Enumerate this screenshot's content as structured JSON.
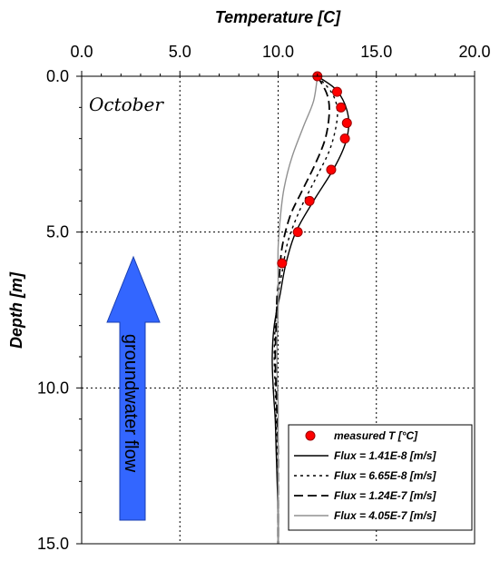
{
  "chart_data": {
    "type": "line",
    "xlabel": "Temperature [C]",
    "ylabel": "Depth [m]",
    "xlim": [
      0,
      20
    ],
    "ylim": [
      0,
      15
    ],
    "y_inverted": true,
    "x_axis_position": "top",
    "grid": "dotted major gridlines",
    "x_ticks": [
      "0.0",
      "5.0",
      "10.0",
      "15.0",
      "20.0"
    ],
    "y_ticks": [
      "0.0",
      "5.0",
      "10.0",
      "15.0"
    ],
    "legend_position": "bottom-right",
    "annotations": {
      "month": "October",
      "arrow": "groundwater flow",
      "arrow_color": "#3366ff"
    },
    "series": [
      {
        "name": "measured T [°C]",
        "kind": "markers",
        "color": "#ff0000",
        "points": [
          [
            12.0,
            0.0
          ],
          [
            13.0,
            0.5
          ],
          [
            13.2,
            1.0
          ],
          [
            13.5,
            1.5
          ],
          [
            13.4,
            2.0
          ],
          [
            12.7,
            3.0
          ],
          [
            11.6,
            4.0
          ],
          [
            11.0,
            5.0
          ],
          [
            10.2,
            6.0
          ]
        ]
      },
      {
        "name": "Flux = 1.41E-8 [m/s]",
        "kind": "line",
        "dash": "solid",
        "color": "#000000",
        "points": [
          [
            12.0,
            0.0
          ],
          [
            12.9,
            0.4
          ],
          [
            13.4,
            0.9
          ],
          [
            13.6,
            1.5
          ],
          [
            13.4,
            2.2
          ],
          [
            12.8,
            3.0
          ],
          [
            11.8,
            4.0
          ],
          [
            10.9,
            5.0
          ],
          [
            10.4,
            6.0
          ],
          [
            10.1,
            7.0
          ],
          [
            9.8,
            8.0
          ],
          [
            9.7,
            9.0
          ],
          [
            9.75,
            10.0
          ],
          [
            9.85,
            11.0
          ],
          [
            9.9,
            12.0
          ],
          [
            9.95,
            13.0
          ],
          [
            10.0,
            14.0
          ],
          [
            10.0,
            15.0
          ]
        ]
      },
      {
        "name": "Flux = 6.65E-8 [m/s]",
        "kind": "line",
        "dash": "dotted",
        "color": "#000000",
        "points": [
          [
            12.0,
            0.0
          ],
          [
            12.7,
            0.5
          ],
          [
            13.0,
            1.0
          ],
          [
            12.95,
            1.6
          ],
          [
            12.6,
            2.4
          ],
          [
            11.9,
            3.3
          ],
          [
            11.1,
            4.3
          ],
          [
            10.5,
            5.3
          ],
          [
            10.2,
            6.3
          ],
          [
            10.0,
            7.0
          ],
          [
            9.85,
            8.0
          ],
          [
            9.8,
            9.0
          ],
          [
            9.85,
            10.0
          ],
          [
            9.9,
            11.0
          ],
          [
            9.95,
            12.0
          ],
          [
            10.0,
            13.0
          ],
          [
            10.0,
            14.0
          ],
          [
            10.0,
            15.0
          ]
        ]
      },
      {
        "name": "Flux = 1.24E-7 [m/s]",
        "kind": "line",
        "dash": "dashed",
        "color": "#000000",
        "points": [
          [
            12.0,
            0.0
          ],
          [
            12.5,
            0.6
          ],
          [
            12.6,
            1.2
          ],
          [
            12.4,
            2.0
          ],
          [
            11.9,
            2.8
          ],
          [
            11.2,
            3.7
          ],
          [
            10.6,
            4.5
          ],
          [
            10.2,
            5.5
          ],
          [
            10.05,
            6.5
          ],
          [
            9.95,
            7.0
          ],
          [
            9.9,
            8.0
          ],
          [
            9.85,
            9.0
          ],
          [
            9.9,
            10.0
          ],
          [
            9.95,
            11.0
          ],
          [
            10.0,
            12.0
          ],
          [
            10.0,
            13.0
          ],
          [
            10.0,
            14.0
          ],
          [
            10.0,
            15.0
          ]
        ]
      },
      {
        "name": "Flux = 4.05E-7 [m/s]",
        "kind": "line",
        "dash": "solid",
        "color": "#909090",
        "points": [
          [
            12.0,
            0.0
          ],
          [
            11.8,
            0.8
          ],
          [
            11.3,
            1.6
          ],
          [
            10.7,
            2.6
          ],
          [
            10.3,
            3.6
          ],
          [
            10.1,
            4.6
          ],
          [
            10.0,
            5.5
          ],
          [
            10.0,
            6.5
          ],
          [
            10.0,
            7.5
          ],
          [
            9.95,
            8.5
          ],
          [
            9.95,
            9.5
          ],
          [
            10.0,
            10.5
          ],
          [
            10.0,
            11.5
          ],
          [
            10.0,
            12.5
          ],
          [
            10.0,
            13.5
          ],
          [
            10.0,
            15.0
          ]
        ]
      }
    ]
  }
}
